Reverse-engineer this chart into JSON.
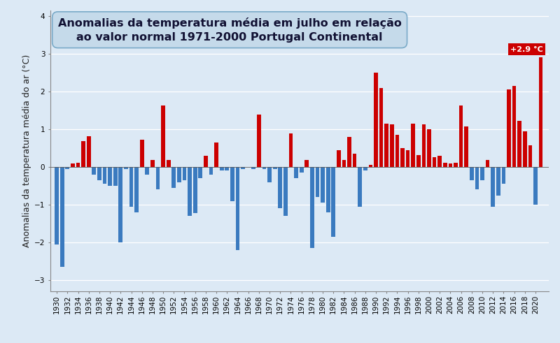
{
  "years": [
    1930,
    1931,
    1932,
    1933,
    1934,
    1935,
    1936,
    1937,
    1938,
    1939,
    1940,
    1941,
    1942,
    1943,
    1944,
    1945,
    1946,
    1947,
    1948,
    1949,
    1950,
    1951,
    1952,
    1953,
    1954,
    1955,
    1956,
    1957,
    1958,
    1959,
    1960,
    1961,
    1962,
    1963,
    1964,
    1965,
    1966,
    1967,
    1968,
    1969,
    1970,
    1971,
    1972,
    1973,
    1974,
    1975,
    1976,
    1977,
    1978,
    1979,
    1980,
    1981,
    1982,
    1983,
    1984,
    1985,
    1986,
    1987,
    1988,
    1989,
    1990,
    1991,
    1992,
    1993,
    1994,
    1995,
    1996,
    1997,
    1998,
    1999,
    2000,
    2001,
    2002,
    2003,
    2004,
    2005,
    2006,
    2007,
    2008,
    2009,
    2010,
    2011,
    2012,
    2013,
    2014,
    2015,
    2016,
    2017,
    2018,
    2019,
    2020,
    2021
  ],
  "values": [
    -2.05,
    -2.65,
    -0.05,
    0.1,
    0.12,
    0.68,
    0.82,
    -0.2,
    -0.35,
    -0.45,
    -0.5,
    -0.5,
    -2.0,
    -0.05,
    -1.05,
    -1.2,
    0.72,
    -0.2,
    0.18,
    -0.6,
    1.62,
    0.18,
    -0.55,
    -0.4,
    -0.35,
    -1.3,
    -1.22,
    -0.3,
    0.3,
    -0.2,
    0.65,
    -0.1,
    -0.1,
    -0.9,
    -2.2,
    -0.05,
    0.0,
    -0.05,
    1.38,
    -0.05,
    -0.4,
    -0.05,
    -1.1,
    -1.3,
    0.88,
    -0.3,
    -0.15,
    0.18,
    -2.15,
    -0.8,
    -0.95,
    -1.2,
    -1.85,
    0.45,
    0.18,
    0.8,
    0.35,
    -1.05,
    -0.1,
    0.05,
    2.5,
    2.1,
    1.15,
    1.12,
    0.85,
    0.5,
    0.45,
    1.15,
    0.32,
    1.12,
    1.0,
    0.25,
    0.3,
    0.12,
    0.1,
    0.12,
    1.62,
    1.08,
    -0.35,
    -0.6,
    -0.35,
    0.18,
    -1.05,
    -0.75,
    -0.45,
    2.05,
    2.15,
    1.22,
    0.95,
    0.58,
    -1.0,
    2.9
  ],
  "annotation_year": 2021,
  "annotation_text": "+2.9 °C",
  "annotation_color": "#cc0000",
  "annotation_text_color": "white",
  "positive_color": "#cc0000",
  "negative_color": "#3a7abf",
  "background_color": "#dce9f5",
  "plot_bg_color": "#dce9f5",
  "title_line1": "Anomalias da temperatura média em julho em relação",
  "title_line2": "ao valor normal 1971-2000 Portugal Continental",
  "ylabel": "Anomalias da temperatura média do ar (°C)",
  "ylim": [
    -3.3,
    4.15
  ],
  "yticks": [
    -3.0,
    -2.0,
    -1.0,
    0.0,
    1.0,
    2.0,
    3.0,
    4.0
  ],
  "title_fontsize": 11.5,
  "ylabel_fontsize": 9,
  "tick_fontsize": 7.5
}
